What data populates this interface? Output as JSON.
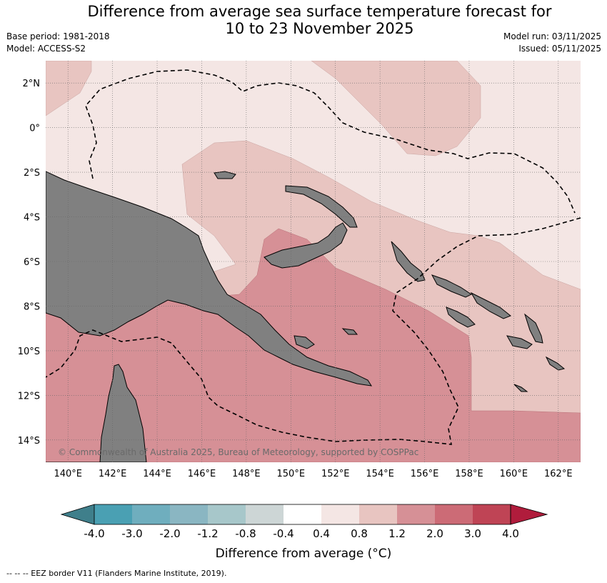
{
  "title_line1": "Difference from average sea surface temperature forecast for",
  "title_line2": "10 to 23 November 2025",
  "base_period": "Base period: 1981-2018",
  "model": "Model: ACCESS-S2",
  "model_run": "Model run: 03/11/2025",
  "issued": "Issued: 05/11/2025",
  "copyright": "© Commonwealth of Australia 2025, Bureau of Meteorology, supported by COSPPac",
  "colorbar_title": "Difference from average (°C)",
  "footer": "-- -- -- EEZ border V11 (Flanders Marine Institute, 2019).",
  "map": {
    "lon_min": 139.0,
    "lon_max": 163.0,
    "lat_min": -15.0,
    "lat_max": 3.0,
    "lon_ticks": [
      140,
      142,
      144,
      146,
      148,
      150,
      152,
      154,
      156,
      158,
      160,
      162
    ],
    "lon_labels": [
      "140°E",
      "142°E",
      "144°E",
      "146°E",
      "148°E",
      "150°E",
      "152°E",
      "154°E",
      "156°E",
      "158°E",
      "160°E",
      "162°E"
    ],
    "lat_ticks": [
      2,
      0,
      -2,
      -4,
      -6,
      -8,
      -10,
      -12,
      -14
    ],
    "lat_labels": [
      "2°N",
      "0°",
      "2°S",
      "4°S",
      "6°S",
      "8°S",
      "10°S",
      "12°S",
      "14°S"
    ],
    "land_color": "#808080"
  },
  "colorbar": {
    "ticks": [
      "-4.0",
      "-3.0",
      "-2.0",
      "-1.2",
      "-0.8",
      "-0.4",
      "0.4",
      "0.8",
      "1.2",
      "2.0",
      "3.0",
      "4.0"
    ],
    "under_color": "#3f7f8b",
    "over_color": "#b01c3c",
    "colors": [
      "#4aa0b3",
      "#6faebe",
      "#8ab6c2",
      "#a7c7ca",
      "#cdd6d6",
      "#ffffff",
      "#f4e6e4",
      "#e8c5c1",
      "#d69096",
      "#cc6b76",
      "#bf4455"
    ]
  }
}
